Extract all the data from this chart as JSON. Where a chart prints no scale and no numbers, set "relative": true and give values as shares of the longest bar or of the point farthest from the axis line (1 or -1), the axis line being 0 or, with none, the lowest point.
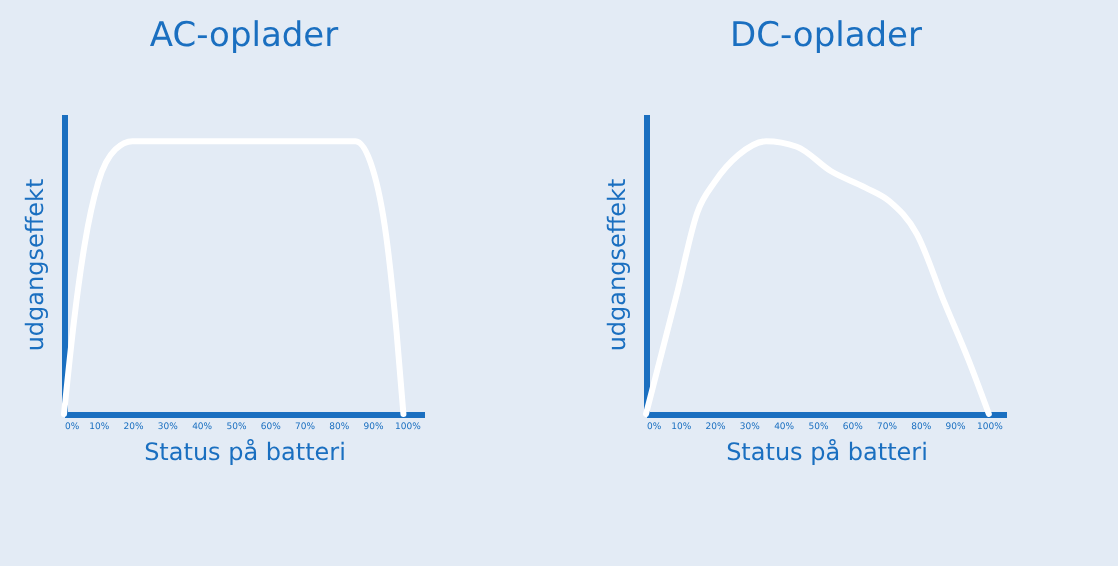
{
  "chart_data": [
    {
      "type": "line",
      "title": "AC-oplader",
      "xlabel": "Status på batteri",
      "ylabel": "udgangseffekt",
      "relative": true,
      "color": "#ffffff",
      "xlim": [
        0,
        105
      ],
      "xticks": [
        {
          "value": 0,
          "label": "0%"
        },
        {
          "value": 10,
          "label": "10%"
        },
        {
          "value": 20,
          "label": "20%"
        },
        {
          "value": 30,
          "label": "30%"
        },
        {
          "value": 40,
          "label": "40%"
        },
        {
          "value": 50,
          "label": "50%"
        },
        {
          "value": 60,
          "label": "60%"
        },
        {
          "value": 70,
          "label": "70%"
        },
        {
          "value": 80,
          "label": "80%"
        },
        {
          "value": 90,
          "label": "90%"
        },
        {
          "value": 100,
          "label": "100%"
        }
      ],
      "x": [
        0,
        3,
        6,
        10,
        15,
        20,
        50,
        85,
        90,
        94,
        97,
        99
      ],
      "values": [
        0,
        0.35,
        0.62,
        0.85,
        0.97,
        1,
        1,
        1,
        0.9,
        0.65,
        0.3,
        0
      ]
    },
    {
      "type": "line",
      "title": "DC-oplader",
      "xlabel": "Status på batteri",
      "ylabel": "udgangseffekt",
      "relative": true,
      "color": "#ffffff",
      "xlim": [
        0,
        105
      ],
      "xticks": [
        {
          "value": 0,
          "label": "0%"
        },
        {
          "value": 10,
          "label": "10%"
        },
        {
          "value": 20,
          "label": "20%"
        },
        {
          "value": 30,
          "label": "30%"
        },
        {
          "value": 40,
          "label": "40%"
        },
        {
          "value": 50,
          "label": "50%"
        },
        {
          "value": 60,
          "label": "60%"
        },
        {
          "value": 70,
          "label": "70%"
        },
        {
          "value": 80,
          "label": "80%"
        },
        {
          "value": 90,
          "label": "90%"
        },
        {
          "value": 100,
          "label": "100%"
        }
      ],
      "x": [
        0,
        9,
        15,
        20,
        27,
        35,
        44,
        54,
        64,
        71,
        79,
        87,
        94,
        100
      ],
      "values": [
        0,
        0.44,
        0.74,
        0.85,
        0.95,
        1,
        0.98,
        0.89,
        0.83,
        0.78,
        0.66,
        0.41,
        0.2,
        0
      ]
    }
  ]
}
